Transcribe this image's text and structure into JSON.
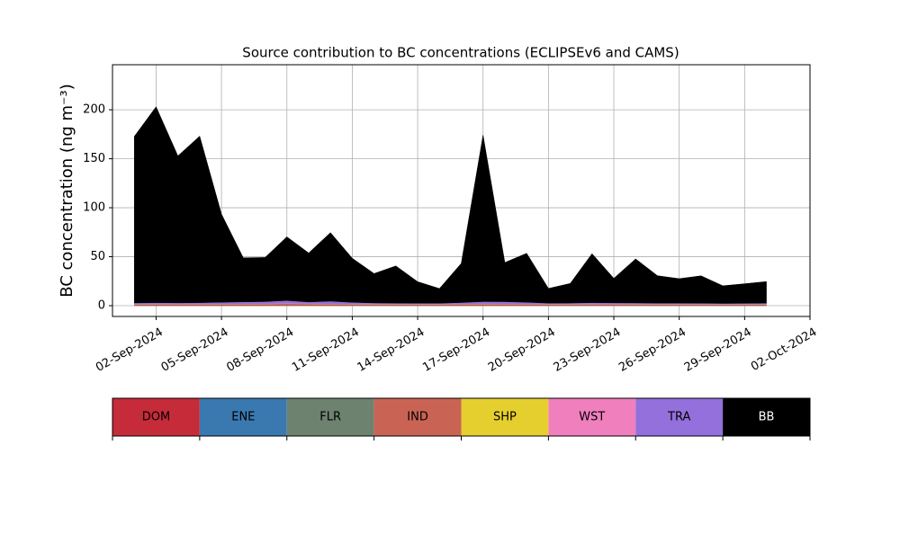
{
  "chart_data": {
    "type": "stacked_area",
    "title": "Source contribution to BC concentrations (ECLIPSEv6 and CAMS)",
    "y_label": "BC concentration (ng m⁻³)",
    "x": [
      "2024-09-01",
      "2024-09-02",
      "2024-09-03",
      "2024-09-04",
      "2024-09-05",
      "2024-09-06",
      "2024-09-07",
      "2024-09-08",
      "2024-09-09",
      "2024-09-10",
      "2024-09-11",
      "2024-09-12",
      "2024-09-13",
      "2024-09-14",
      "2024-09-15",
      "2024-09-16",
      "2024-09-17",
      "2024-09-18",
      "2024-09-19",
      "2024-09-20",
      "2024-09-21",
      "2024-09-22",
      "2024-09-23",
      "2024-09-24",
      "2024-09-25",
      "2024-09-26",
      "2024-09-27",
      "2024-09-28",
      "2024-09-29",
      "2024-09-30"
    ],
    "series": [
      {
        "name": "DOM",
        "color": "#c62b3a",
        "values": [
          0.5,
          0.5,
          0.5,
          0.5,
          0.5,
          0.5,
          0.5,
          0.5,
          0.5,
          0.5,
          0.5,
          0.5,
          0.5,
          0.5,
          0.5,
          0.5,
          0.5,
          0.5,
          0.5,
          0.5,
          0.5,
          0.5,
          0.5,
          0.5,
          0.5,
          0.5,
          0.5,
          0.5,
          0.5,
          0.5
        ]
      },
      {
        "name": "ENE",
        "color": "#3a78b0",
        "values": [
          0.2,
          0.2,
          0.2,
          0.2,
          0.2,
          0.2,
          0.2,
          0.2,
          0.2,
          0.2,
          0.2,
          0.2,
          0.2,
          0.2,
          0.2,
          0.2,
          0.2,
          0.2,
          0.2,
          0.2,
          0.2,
          0.2,
          0.2,
          0.2,
          0.2,
          0.2,
          0.2,
          0.2,
          0.2,
          0.2
        ]
      },
      {
        "name": "FLR",
        "color": "#6e8270",
        "values": [
          0.1,
          0.1,
          0.1,
          0.1,
          0.1,
          0.1,
          0.1,
          0.1,
          0.1,
          0.1,
          0.1,
          0.1,
          0.1,
          0.1,
          0.1,
          0.1,
          0.1,
          0.1,
          0.1,
          0.1,
          0.1,
          0.1,
          0.1,
          0.1,
          0.1,
          0.1,
          0.1,
          0.1,
          0.1,
          0.1
        ]
      },
      {
        "name": "IND",
        "color": "#c96455",
        "values": [
          0.5,
          0.6,
          0.6,
          0.6,
          0.7,
          0.8,
          0.9,
          1.2,
          1.0,
          0.8,
          0.6,
          0.5,
          0.5,
          0.4,
          0.5,
          0.7,
          0.9,
          0.8,
          0.7,
          0.5,
          0.5,
          0.6,
          0.6,
          0.5,
          0.5,
          0.5,
          0.4,
          0.4,
          0.4,
          0.5
        ]
      },
      {
        "name": "SHP",
        "color": "#e5cf2e",
        "values": [
          0.3,
          0.3,
          0.3,
          0.3,
          0.3,
          0.3,
          0.3,
          0.3,
          0.3,
          0.3,
          0.3,
          0.3,
          0.3,
          0.3,
          0.3,
          0.3,
          0.3,
          0.3,
          0.3,
          0.3,
          0.3,
          0.3,
          0.3,
          0.3,
          0.3,
          0.3,
          0.3,
          0.3,
          0.3,
          0.3
        ]
      },
      {
        "name": "WST",
        "color": "#f07fbe",
        "values": [
          0.2,
          0.2,
          0.2,
          0.2,
          0.2,
          0.2,
          0.2,
          0.2,
          0.2,
          0.2,
          0.2,
          0.2,
          0.2,
          0.2,
          0.2,
          0.2,
          0.2,
          0.2,
          0.2,
          0.2,
          0.2,
          0.2,
          0.2,
          0.2,
          0.2,
          0.2,
          0.2,
          0.2,
          0.2,
          0.2
        ]
      },
      {
        "name": "TRA",
        "color": "#9370db",
        "values": [
          1.0,
          1.2,
          1.0,
          1.2,
          1.5,
          1.8,
          2.0,
          2.8,
          1.5,
          2.5,
          1.5,
          1.0,
          0.8,
          0.8,
          0.7,
          1.2,
          2.0,
          2.0,
          1.5,
          0.8,
          0.9,
          1.2,
          1.0,
          1.0,
          0.8,
          0.8,
          0.8,
          0.6,
          0.7,
          0.8
        ]
      },
      {
        "name": "BB",
        "color": "#000000",
        "values": [
          170,
          200,
          150,
          170,
          90,
          45,
          45,
          65,
          50,
          70,
          45,
          30,
          38,
          22,
          15,
          40,
          170,
          40,
          50,
          15,
          20,
          50,
          25,
          45,
          28,
          25,
          28,
          18,
          20,
          22
        ]
      }
    ],
    "xlim": [
      "2024-08-31",
      "2024-10-02"
    ],
    "xticks": [
      {
        "value": "2024-09-02",
        "label": "02-Sep-2024"
      },
      {
        "value": "2024-09-05",
        "label": "05-Sep-2024"
      },
      {
        "value": "2024-09-08",
        "label": "08-Sep-2024"
      },
      {
        "value": "2024-09-11",
        "label": "11-Sep-2024"
      },
      {
        "value": "2024-09-14",
        "label": "14-Sep-2024"
      },
      {
        "value": "2024-09-17",
        "label": "17-Sep-2024"
      },
      {
        "value": "2024-09-20",
        "label": "20-Sep-2024"
      },
      {
        "value": "2024-09-23",
        "label": "23-Sep-2024"
      },
      {
        "value": "2024-09-26",
        "label": "26-Sep-2024"
      },
      {
        "value": "2024-09-29",
        "label": "29-Sep-2024"
      },
      {
        "value": "2024-10-02",
        "label": "02-Oct-2024"
      }
    ],
    "ylim": [
      -11,
      246
    ],
    "yticks": [
      0,
      50,
      100,
      150,
      200
    ],
    "grid": true
  }
}
